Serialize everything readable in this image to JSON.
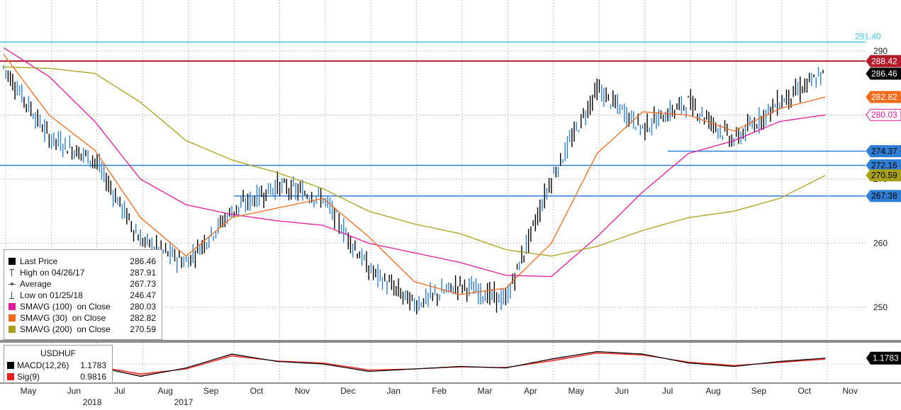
{
  "chart_data": {
    "type": "line",
    "title": "USDHUF",
    "chart_style": "daily bar (open/high/low/close)",
    "ylim": [
      240,
      293
    ],
    "y_ticks": [
      250,
      260,
      270,
      280,
      290
    ],
    "x_labels": [
      "May",
      "Jun",
      "Jul",
      "Aug",
      "Sep",
      "Oct",
      "Nov",
      "Dec",
      "Jan",
      "Feb",
      "Mar",
      "Apr",
      "May",
      "Jun",
      "Jul",
      "Aug",
      "Sep",
      "Oct",
      "Nov"
    ],
    "year_labels": [
      {
        "label": "2017",
        "after_month": "Aug"
      },
      {
        "label": "2018",
        "after_month": "Jun"
      }
    ],
    "grid": true,
    "legend_position": "bottom-left",
    "series": [
      {
        "name": "Last Price",
        "color": "#000000",
        "x": [
          "May",
          "Jun",
          "Jul",
          "Aug",
          "Sep",
          "Oct",
          "Nov",
          "Dec",
          "Jan",
          "Feb",
          "Mar",
          "Apr",
          "May",
          "Jun",
          "Jul",
          "Aug",
          "Sep",
          "Oct",
          "Nov"
        ],
        "values": [
          287.5,
          276.5,
          273,
          260.5,
          257,
          265,
          269,
          267,
          256,
          250.5,
          253.5,
          251,
          270,
          284,
          278,
          282,
          276,
          282,
          286.46
        ]
      },
      {
        "name": "SMAVG (100)  on Close",
        "color": "#e0199d",
        "values": [
          290.5,
          286,
          279,
          270,
          266,
          264.5,
          263.5,
          262.8,
          260,
          258.5,
          257,
          255,
          254.8,
          261,
          268,
          274,
          276,
          279,
          280.03
        ]
      },
      {
        "name": "SMAVG (30)  on Close",
        "color": "#f26b1d",
        "values": [
          289.5,
          280,
          274.5,
          264,
          258,
          264,
          265.5,
          267,
          261,
          254,
          252,
          253,
          260,
          274,
          280.5,
          280,
          277.5,
          281,
          282.82
        ]
      },
      {
        "name": "SMAVG (200)  on Close",
        "color": "#a9a11c",
        "values": [
          287.5,
          287.3,
          286.5,
          282,
          276,
          273,
          271,
          268.5,
          265,
          263,
          261.5,
          259,
          258,
          259.5,
          262,
          264,
          265,
          267,
          270.59
        ]
      }
    ],
    "legend": {
      "last_price": {
        "label": "Last Price",
        "value": "286.46",
        "color": "#000000"
      },
      "high": {
        "label": "High on 04/26/17",
        "value": "287.91"
      },
      "average": {
        "label": "Average",
        "value": "267.73"
      },
      "low": {
        "label": "Low on 01/25/18",
        "value": "246.47"
      },
      "sma100": {
        "label": "SMAVG (100)  on Close",
        "value": "280.03",
        "color": "#e0199d"
      },
      "sma30": {
        "label": "SMAVG (30)  on Close",
        "value": "282.82",
        "color": "#f26b1d"
      },
      "sma200": {
        "label": "SMAVG (200)  on Close",
        "value": "270.59",
        "color": "#a9a11c"
      }
    },
    "horizontal_lines": [
      {
        "value": 291.4,
        "label": "291.40",
        "color": "#3ec4e0"
      },
      {
        "value": 288.42,
        "label": "288.42",
        "color": "#b3192a"
      },
      {
        "value": 274.37,
        "label": "274.37",
        "color": "#2f7fd6",
        "start_month_index": 14.5
      },
      {
        "value": 272.16,
        "label": "272.16",
        "color": "#2f7fd6"
      },
      {
        "value": 267.38,
        "label": "267.38",
        "color": "#2f7fd6",
        "start_month_index": 5
      }
    ],
    "price_tags": [
      {
        "value": 288.42,
        "label": "288.42",
        "bg": "#b3192a",
        "fg": "#ffffff"
      },
      {
        "value": 286.46,
        "label": "286.46",
        "bg": "#000000",
        "fg": "#ffffff"
      },
      {
        "value": 282.82,
        "label": "282.82",
        "bg": "#f26b1d",
        "fg": "#ffffff"
      },
      {
        "value": 280.03,
        "label": "280.03",
        "bg": "#ffffff",
        "fg": "#e0199d",
        "border": "#e0199d"
      },
      {
        "value": 274.37,
        "label": "274.37",
        "bg": "#2f7fd6",
        "fg": "#000000"
      },
      {
        "value": 272.16,
        "label": "272.16",
        "bg": "#2f7fd6",
        "fg": "#000000"
      },
      {
        "value": 270.59,
        "label": "270.59",
        "bg": "#a9a11c",
        "fg": "#000000"
      },
      {
        "value": 267.38,
        "label": "267.38",
        "bg": "#2f7fd6",
        "fg": "#000000"
      }
    ],
    "macd": {
      "title": "USDHUF",
      "macd_label": "MACD(12,26)",
      "macd_value": "1.1783",
      "macd_color": "#000000",
      "sig_label": "Sig(9)",
      "sig_value": "0.9816",
      "sig_color": "#e8201a",
      "tag": "1.1783",
      "ylim": [
        -3,
        3
      ],
      "macd_values": [
        1.5,
        -0.5,
        -0.5,
        -2.5,
        -0.8,
        2.0,
        0.5,
        0.0,
        -1.5,
        -1.0,
        -0.5,
        -0.8,
        1.0,
        2.5,
        2.0,
        0.2,
        -0.5,
        0.5,
        1.18
      ],
      "sig_values": [
        1.6,
        -0.2,
        -0.4,
        -2.0,
        -1.0,
        1.6,
        0.6,
        0.2,
        -1.2,
        -1.0,
        -0.6,
        -0.7,
        0.6,
        2.2,
        1.8,
        0.4,
        -0.3,
        0.3,
        0.98
      ]
    }
  }
}
